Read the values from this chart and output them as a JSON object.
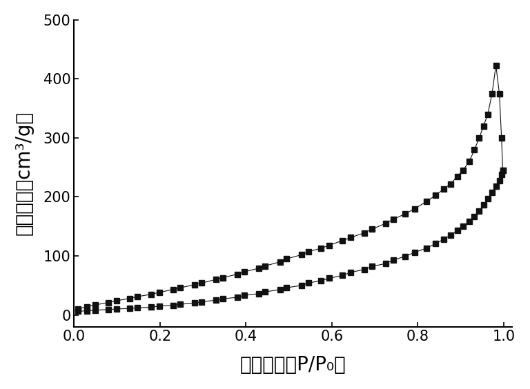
{
  "title": "",
  "xlabel": "相对压力（P/P₀）",
  "ylabel": "吸附体积（cm³/g）",
  "xlim": [
    0.0,
    1.02
  ],
  "ylim": [
    -20,
    500
  ],
  "xticks": [
    0.0,
    0.2,
    0.4,
    0.6,
    0.8,
    1.0
  ],
  "yticks": [
    0,
    100,
    200,
    300,
    400,
    500
  ],
  "background_color": "#ffffff",
  "marker": "s",
  "marker_color": "#111111",
  "marker_size": 6,
  "adsorption": {
    "x": [
      0.009,
      0.03,
      0.05,
      0.08,
      0.099,
      0.13,
      0.148,
      0.18,
      0.198,
      0.23,
      0.247,
      0.28,
      0.297,
      0.33,
      0.346,
      0.38,
      0.396,
      0.43,
      0.445,
      0.48,
      0.495,
      0.53,
      0.545,
      0.575,
      0.594,
      0.625,
      0.644,
      0.675,
      0.693,
      0.725,
      0.743,
      0.77,
      0.793,
      0.82,
      0.842,
      0.86,
      0.876,
      0.893,
      0.905,
      0.92,
      0.932,
      0.943,
      0.953,
      0.963,
      0.973,
      0.982,
      0.99,
      0.995,
      0.998
    ],
    "y": [
      10,
      14,
      17,
      21,
      24,
      28,
      31,
      35,
      38,
      43,
      46,
      51,
      54,
      60,
      63,
      69,
      73,
      79,
      83,
      90,
      95,
      102,
      107,
      113,
      118,
      126,
      131,
      139,
      145,
      155,
      162,
      171,
      180,
      192,
      203,
      213,
      222,
      235,
      245,
      260,
      280,
      300,
      320,
      340,
      375,
      423,
      375,
      300,
      245
    ]
  },
  "desorption": {
    "x": [
      0.998,
      0.995,
      0.99,
      0.982,
      0.973,
      0.963,
      0.953,
      0.943,
      0.932,
      0.92,
      0.905,
      0.893,
      0.876,
      0.86,
      0.842,
      0.82,
      0.793,
      0.77,
      0.743,
      0.725,
      0.693,
      0.675,
      0.644,
      0.625,
      0.594,
      0.575,
      0.545,
      0.53,
      0.495,
      0.48,
      0.445,
      0.43,
      0.396,
      0.38,
      0.346,
      0.33,
      0.297,
      0.28,
      0.247,
      0.23,
      0.198,
      0.18,
      0.148,
      0.13,
      0.099,
      0.08,
      0.05,
      0.03,
      0.009
    ],
    "y": [
      245,
      238,
      228,
      218,
      207,
      197,
      186,
      176,
      167,
      158,
      150,
      143,
      135,
      128,
      121,
      113,
      106,
      99,
      93,
      87,
      82,
      77,
      72,
      67,
      62,
      58,
      54,
      50,
      46,
      43,
      39,
      36,
      33,
      30,
      27,
      25,
      22,
      20,
      18,
      16,
      15,
      13,
      12,
      11,
      10,
      9,
      8,
      7,
      6
    ]
  }
}
